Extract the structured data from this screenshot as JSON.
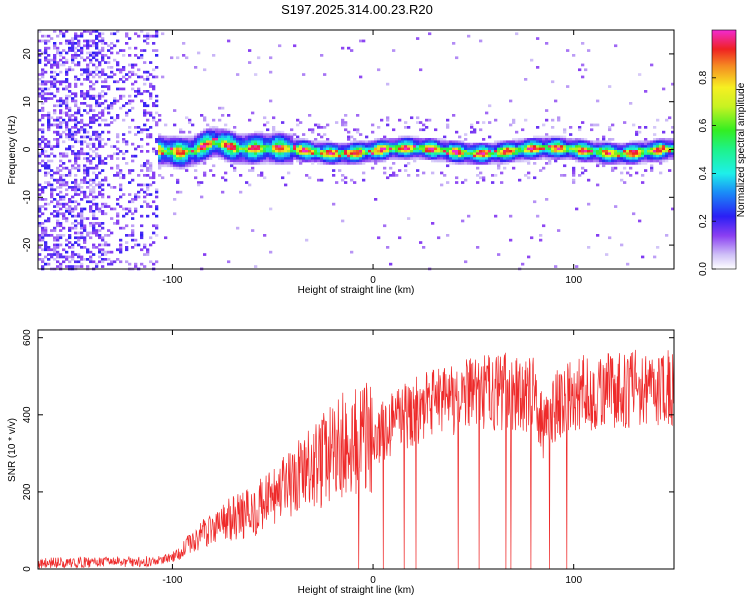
{
  "title": "S197.2025.314.00.23.R20",
  "chart_data": [
    {
      "type": "heatmap",
      "name": "spectrogram",
      "xlabel": "Height of straight line (km)",
      "ylabel": "Frequency (Hz)",
      "xlim": [
        -167,
        150
      ],
      "ylim": [
        -25,
        25
      ],
      "x_ticks": [
        -100,
        0,
        100
      ],
      "y_ticks": [
        -20,
        -10,
        0,
        10,
        20
      ],
      "ridge_center_hz": 0,
      "ridge_start_km": -108,
      "colorbar": {
        "label": "Normalized spectral amplitude",
        "range": [
          0.0,
          1.0
        ],
        "ticks": [
          0.0,
          0.2,
          0.4,
          0.6,
          0.8
        ],
        "tick_labels": [
          "0.0",
          "0.2",
          "0.4",
          "0.6",
          "0.8"
        ]
      }
    },
    {
      "type": "line",
      "name": "snr",
      "xlabel": "Height of straight line (km)",
      "ylabel": "SNR (10 * v/v)",
      "xlim": [
        -167,
        150
      ],
      "ylim": [
        0,
        620
      ],
      "x_ticks": [
        -100,
        0,
        100
      ],
      "y_ticks": [
        0,
        200,
        400,
        600
      ],
      "color": "#ee2a2a",
      "profile_x": [
        -167,
        -110,
        -100,
        -90,
        -80,
        -70,
        -60,
        -50,
        -40,
        -30,
        -20,
        -15,
        -10,
        0,
        10,
        20,
        30,
        40,
        50,
        60,
        70,
        80,
        85,
        90,
        100,
        110,
        120,
        130,
        140,
        150
      ],
      "profile_y": [
        15,
        20,
        30,
        70,
        110,
        130,
        150,
        180,
        220,
        260,
        300,
        320,
        320,
        340,
        380,
        410,
        430,
        440,
        450,
        460,
        460,
        450,
        360,
        420,
        450,
        460,
        460,
        470,
        470,
        470
      ]
    }
  ]
}
